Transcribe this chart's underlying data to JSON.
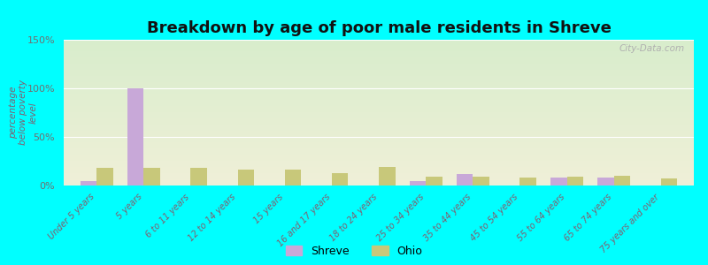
{
  "title": "Breakdown by age of poor male residents in Shreve",
  "ylabel": "percentage\nbelow poverty\nlevel",
  "categories": [
    "Under 5 years",
    "5 years",
    "6 to 11 years",
    "12 to 14 years",
    "15 years",
    "16 and 17 years",
    "18 to 24 years",
    "25 to 34 years",
    "35 to 44 years",
    "45 to 54 years",
    "55 to 64 years",
    "65 to 74 years",
    "75 years and over"
  ],
  "shreve_values": [
    5,
    100,
    0,
    0,
    0,
    0,
    0,
    5,
    12,
    0,
    8,
    8,
    0
  ],
  "ohio_values": [
    18,
    18,
    18,
    16,
    16,
    13,
    19,
    9,
    9,
    8,
    9,
    10,
    7
  ],
  "shreve_color": "#c8a8d8",
  "ohio_color": "#c8c87a",
  "ylim": [
    0,
    150
  ],
  "yticks": [
    0,
    50,
    100,
    150
  ],
  "ytick_labels": [
    "0%",
    "50%",
    "100%",
    "150%"
  ],
  "gradient_top": "#d8edcc",
  "gradient_bottom": "#f0f0d8",
  "outer_background": "#00ffff",
  "title_fontsize": 13,
  "bar_width": 0.35,
  "axis_label_color": "#806070",
  "tick_label_color": "#707070"
}
